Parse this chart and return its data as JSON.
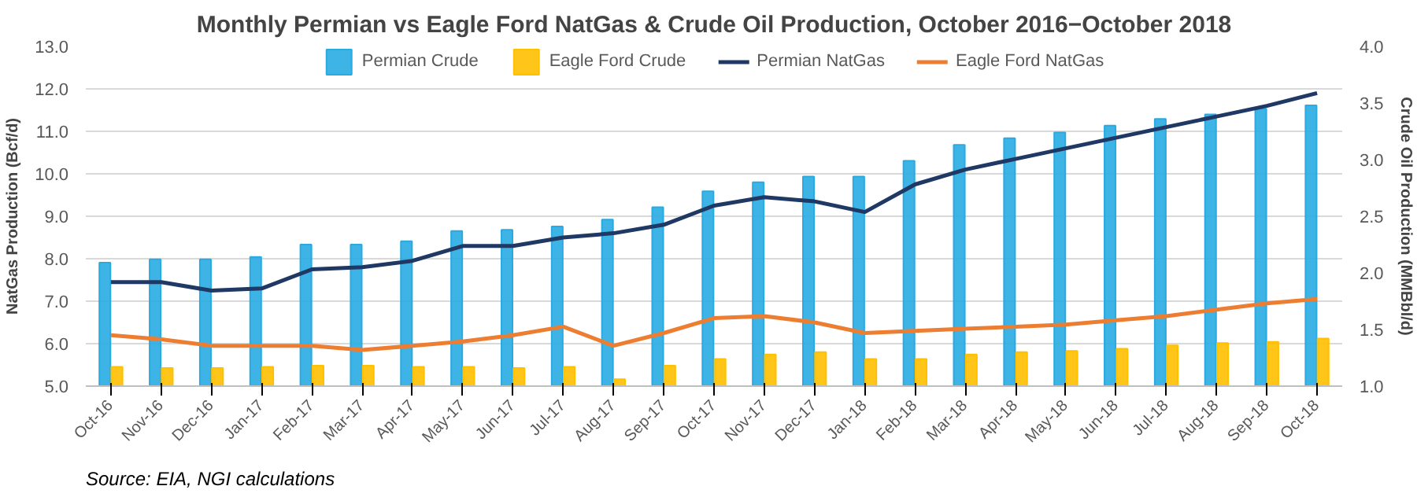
{
  "chart_data": {
    "type": "bar",
    "title": "Monthly Permian vs Eagle Ford NatGas & Crude Oil Production, October 2016−October 2018",
    "categories": [
      "Oct-16",
      "Nov-16",
      "Dec-16",
      "Jan-17",
      "Feb-17",
      "Mar-17",
      "Apr-17",
      "May-17",
      "Jun-17",
      "Jul-17",
      "Aug-17",
      "Sep-17",
      "Oct-17",
      "Nov-17",
      "Dec-17",
      "Jan-18",
      "Feb-18",
      "Mar-18",
      "Apr-18",
      "May-18",
      "Jun-18",
      "Jul-18",
      "Aug-18",
      "Sep-18",
      "Oct-18"
    ],
    "series": [
      {
        "name": "Permian Crude",
        "axis": "y2",
        "color": "#29abe2",
        "values": [
          2.09,
          2.12,
          2.12,
          2.14,
          2.25,
          2.25,
          2.28,
          2.37,
          2.38,
          2.41,
          2.47,
          2.58,
          2.72,
          2.8,
          2.85,
          2.85,
          2.99,
          3.13,
          3.19,
          3.24,
          3.3,
          3.36,
          3.4,
          3.45,
          3.48
        ]
      },
      {
        "name": "Eagle Ford Crude",
        "axis": "y2",
        "color": "#ffc000",
        "values": [
          1.17,
          1.16,
          1.16,
          1.17,
          1.18,
          1.18,
          1.17,
          1.17,
          1.16,
          1.17,
          1.06,
          1.18,
          1.24,
          1.28,
          1.3,
          1.24,
          1.24,
          1.28,
          1.3,
          1.31,
          1.33,
          1.36,
          1.38,
          1.39,
          1.42
        ]
      },
      {
        "name": "Permian NatGas",
        "type": "line",
        "color": "#1f3864",
        "values": [
          7.45,
          7.45,
          7.25,
          7.3,
          7.75,
          7.8,
          7.95,
          8.3,
          8.3,
          8.5,
          8.6,
          8.8,
          9.25,
          9.45,
          9.35,
          9.1,
          9.75,
          10.1,
          10.35,
          10.6,
          10.85,
          11.1,
          11.35,
          11.6,
          11.9
        ]
      },
      {
        "name": "Eagle Ford NatGas",
        "type": "line",
        "color": "#ed7d31",
        "values": [
          6.2,
          6.1,
          5.95,
          5.95,
          5.95,
          5.85,
          5.95,
          6.05,
          6.2,
          6.4,
          5.95,
          6.25,
          6.6,
          6.65,
          6.5,
          6.25,
          6.3,
          6.35,
          6.4,
          6.45,
          6.55,
          6.65,
          6.8,
          6.95,
          7.05
        ]
      }
    ],
    "ylabel": "NatGas Production (Bcf/d)",
    "y2label": "Crude Oil Production (MMBbl/d)",
    "ylim": [
      5.0,
      13.0
    ],
    "yticks": [
      {
        "value": 5,
        "label": "5.0"
      },
      {
        "value": 6,
        "label": "6.0"
      },
      {
        "value": 7,
        "label": "7.0"
      },
      {
        "value": 8,
        "label": "8.0"
      },
      {
        "value": 9,
        "label": "9.0"
      },
      {
        "value": 10,
        "label": "10.0"
      },
      {
        "value": 11,
        "label": "11.0"
      },
      {
        "value": 12,
        "label": "12.0"
      },
      {
        "value": 13,
        "label": "13.0"
      }
    ],
    "y2lim": [
      1.0,
      4.0
    ],
    "y2ticks": [
      {
        "value": 1,
        "label": "1.0"
      },
      1.5,
      {
        "value": 2,
        "label": "2.0"
      },
      2.5,
      {
        "value": 3,
        "label": "3.0"
      },
      3.5,
      {
        "value": 4,
        "label": "4.0"
      }
    ],
    "grid": "y",
    "legend": "top",
    "line_style": "solid",
    "marker": "none",
    "annotations": [
      "Source: EIA, NGI calculations"
    ]
  }
}
